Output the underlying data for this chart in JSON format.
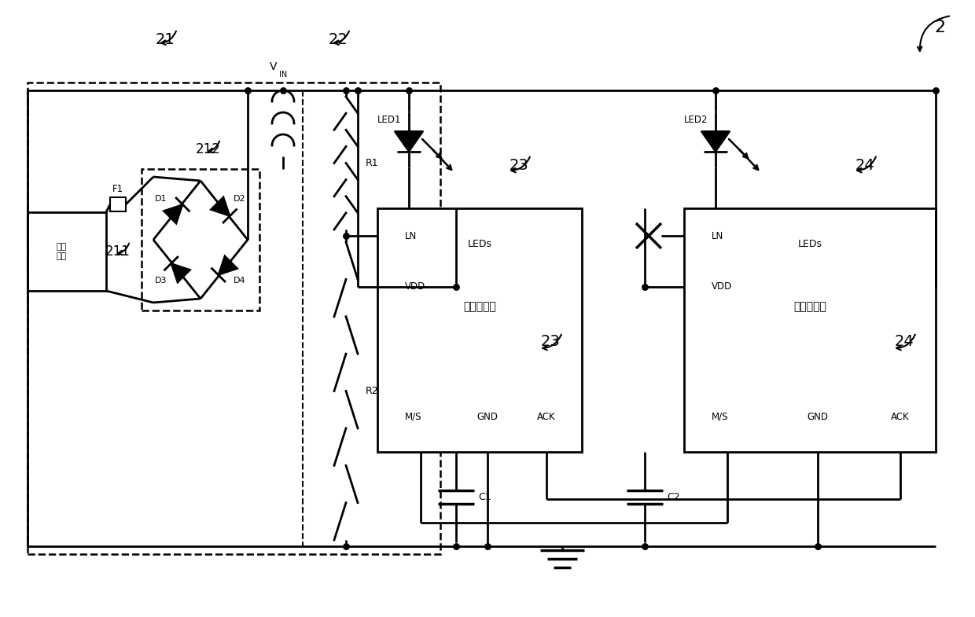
{
  "bg_color": "#ffffff",
  "line_color": "#000000",
  "fig_width": 12.4,
  "fig_height": 7.85,
  "master_label": "主驱动模块",
  "slave_label": "从驱动模块",
  "ac_label": "交流\n电源"
}
